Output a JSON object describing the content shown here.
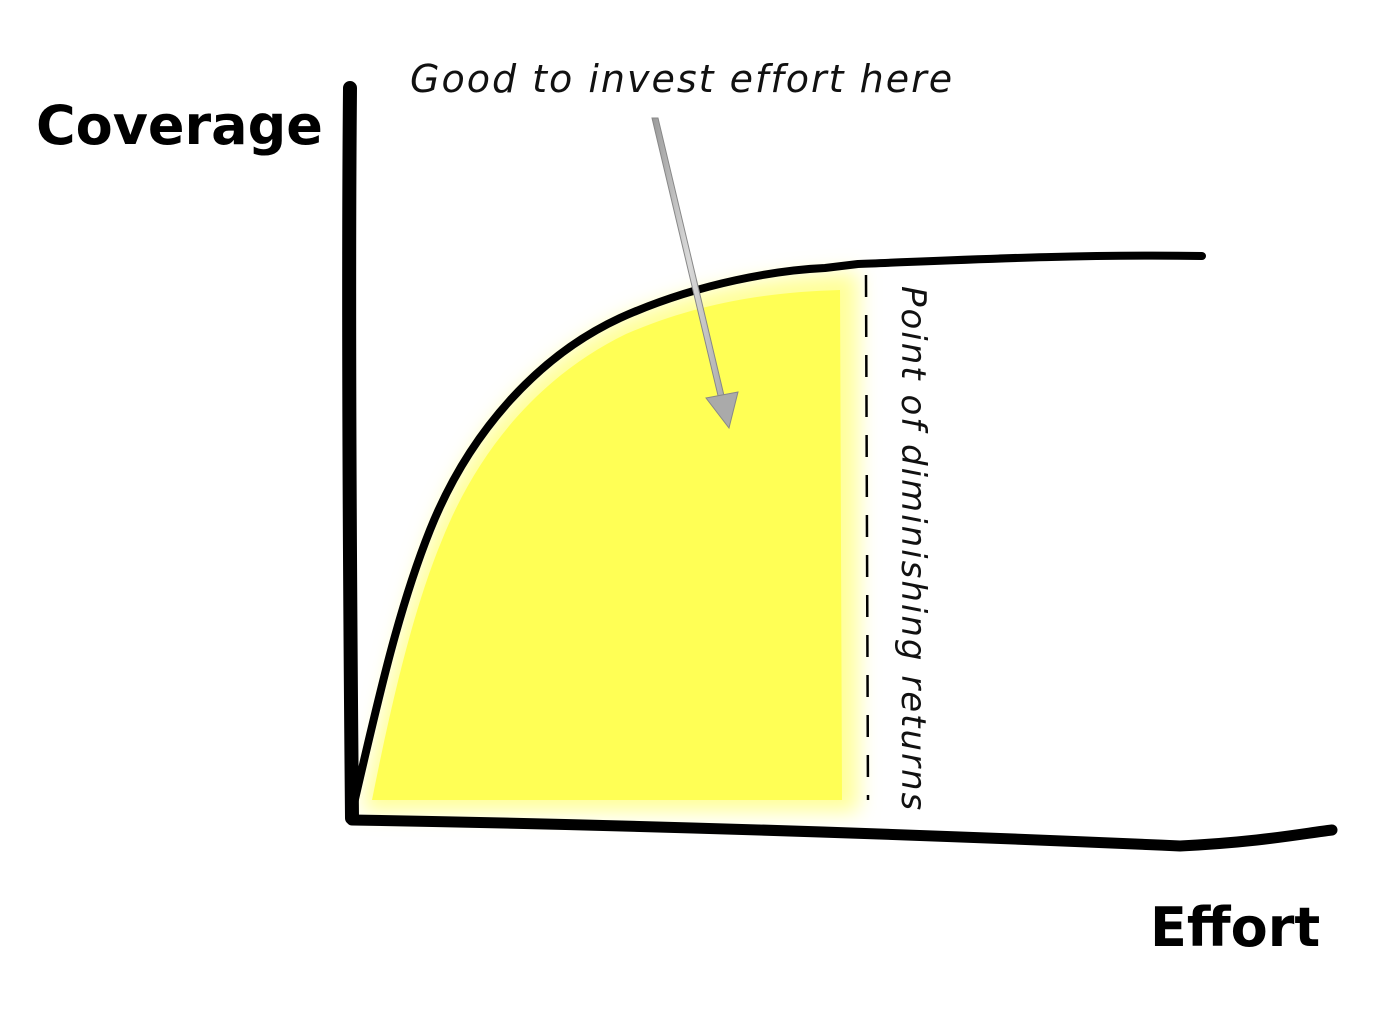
{
  "axes": {
    "y_title": "Coverage",
    "x_title": "Effort"
  },
  "annotations": {
    "invest_label": "Good to invest effort here",
    "diminishing_label": "Point of diminishing returns"
  },
  "colors": {
    "highlight": "#ffff55",
    "highlight_glow": "#ffff99",
    "ink": "#000000",
    "arrow": "#bbbbbb"
  }
}
